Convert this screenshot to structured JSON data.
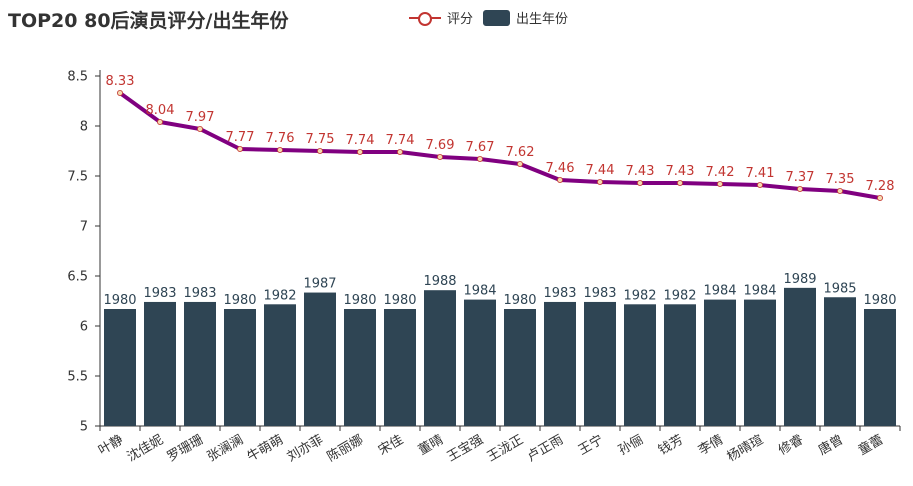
{
  "chart_data": {
    "type": "bar",
    "title": "TOP20 80后演员评分/出生年份",
    "categories": [
      "叶静",
      "沈佳妮",
      "罗珊珊",
      "张澜澜",
      "牛萌萌",
      "刘亦菲",
      "陈丽娜",
      "宋佳",
      "董晴",
      "王宝强",
      "王泷正",
      "卢正雨",
      "王宁",
      "孙俪",
      "钱芳",
      "李倩",
      "杨晴瑄",
      "修睿",
      "唐曾",
      "童蕾"
    ],
    "series": [
      {
        "name": "评分",
        "type": "line",
        "color": "#800080",
        "label_color": "#c23531",
        "values": [
          8.33,
          8.04,
          7.97,
          7.77,
          7.76,
          7.75,
          7.74,
          7.74,
          7.69,
          7.67,
          7.62,
          7.46,
          7.44,
          7.43,
          7.43,
          7.42,
          7.41,
          7.37,
          7.35,
          7.28
        ]
      },
      {
        "name": "出生年份",
        "type": "bar",
        "color": "#2f4554",
        "label_color": "#2f4554",
        "values": [
          1980,
          1983,
          1983,
          1980,
          1982,
          1987,
          1980,
          1980,
          1988,
          1984,
          1980,
          1983,
          1983,
          1982,
          1982,
          1984,
          1984,
          1989,
          1985,
          1980
        ]
      }
    ],
    "yticks": [
      "5",
      "5.5",
      "6",
      "6.5",
      "7",
      "7.5",
      "8",
      "8.5"
    ],
    "ylim": [
      5,
      8.5
    ],
    "legend_position": "top-center",
    "grid": false
  }
}
